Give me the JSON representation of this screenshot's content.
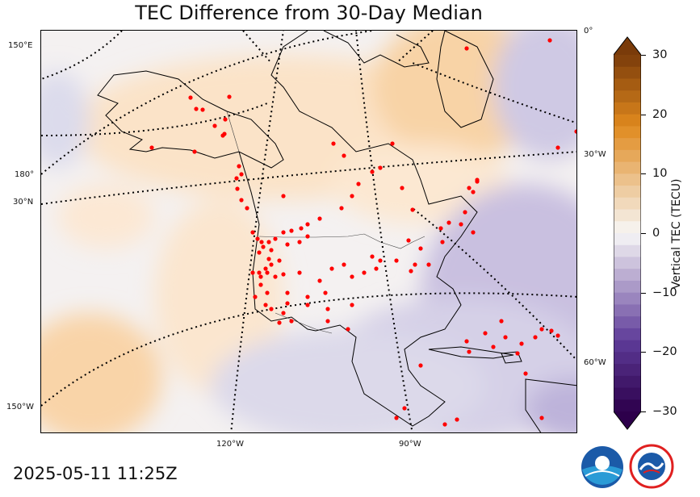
{
  "title": "TEC Difference from 30-Day Median",
  "timestamp": "2025-05-11 11:25Z",
  "colorbar": {
    "label": "Vertical TEC (TECU)",
    "ticks": [
      {
        "value": 30,
        "label": "30"
      },
      {
        "value": 20,
        "label": "20"
      },
      {
        "value": 10,
        "label": "10"
      },
      {
        "value": 0,
        "label": "0"
      },
      {
        "value": -10,
        "label": "−10"
      },
      {
        "value": -20,
        "label": "−20"
      },
      {
        "value": -30,
        "label": "−30"
      }
    ],
    "range": [
      -30,
      30
    ],
    "extend": "both"
  },
  "graticule_labels": {
    "lon_150e": "150°E",
    "lon_180": "180°",
    "lat_30n": "30°N",
    "lon_150w": "150°W",
    "lon_120w": "120°W",
    "lon_90w": "90°W",
    "lon_0": "0°",
    "lon_30w": "30°W",
    "lon_60w": "60°W"
  },
  "map_region": "North America",
  "colors": {
    "positive": "#e08a1e",
    "negative": "#5e3c99",
    "station": "#ff0000",
    "noaa": "#1b5aa8",
    "nws": "#e02020"
  },
  "logos": [
    "noaa-logo",
    "national-weather-service-logo"
  ]
}
